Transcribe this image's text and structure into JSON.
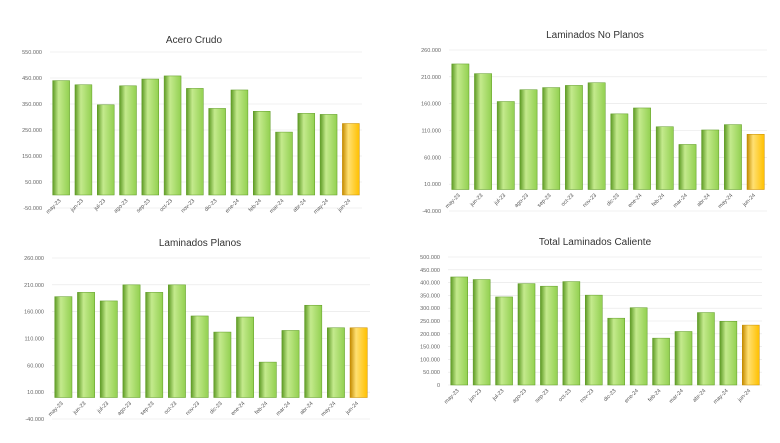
{
  "colors": {
    "bar_green": "#92d050",
    "bar_green_light": "#c4ea8d",
    "bar_green_dark": "#5d9a24",
    "bar_highlight": "#ffc000",
    "bar_highlight_light": "#ffe072",
    "bar_highlight_dark": "#c48a00",
    "grid": "#e4e4e4"
  },
  "chart_data": [
    {
      "type": "bar",
      "title": "Acero Crudo",
      "categories": [
        "may-23",
        "jun-23",
        "jul-23",
        "ago-23",
        "sep-23",
        "oct-23",
        "nov-23",
        "dic-23",
        "ene-24",
        "feb-24",
        "mar-24",
        "abr-24",
        "may-24",
        "jun-24"
      ],
      "values": [
        440000,
        424000,
        347000,
        420000,
        446000,
        458000,
        410000,
        333000,
        404000,
        322000,
        242000,
        314000,
        310000,
        275000
      ],
      "highlight_index": 13,
      "yticks": [
        -50000,
        50000,
        150000,
        250000,
        350000,
        450000,
        550000
      ],
      "ytick_labels": [
        "-50.000",
        "50.000",
        "150.000",
        "250.000",
        "350.000",
        "450.000",
        "550.000"
      ],
      "ylim": [
        -50000,
        550000
      ],
      "xlabel": "",
      "ylabel": "",
      "grid": true
    },
    {
      "type": "bar",
      "title": "Laminados No Planos",
      "categories": [
        "may-23",
        "jun-23",
        "jul-23",
        "ago-23",
        "sep-23",
        "oct-23",
        "nov-23",
        "dic-23",
        "ene-24",
        "feb-24",
        "mar-24",
        "abr-24",
        "may-24",
        "jun-24"
      ],
      "values": [
        234000,
        216000,
        164000,
        186000,
        190000,
        194000,
        199000,
        141000,
        152000,
        117000,
        84000,
        111000,
        121000,
        103000
      ],
      "highlight_index": 13,
      "yticks": [
        -40000,
        10000,
        60000,
        110000,
        160000,
        210000,
        260000
      ],
      "ytick_labels": [
        "-40.000",
        "10.000",
        "60.000",
        "110.000",
        "160.000",
        "210.000",
        "260.000"
      ],
      "ylim": [
        -40000,
        260000
      ],
      "xlabel": "",
      "ylabel": "",
      "grid": true
    },
    {
      "type": "bar",
      "title": "Laminados Planos",
      "categories": [
        "may-23",
        "jun-23",
        "jul-23",
        "ago-23",
        "sep-23",
        "oct-23",
        "nov-23",
        "dic-23",
        "ene-24",
        "feb-24",
        "mar-24",
        "abr-24",
        "may-24",
        "jun-24"
      ],
      "values": [
        188000,
        196000,
        180000,
        210000,
        196000,
        210000,
        152000,
        122000,
        150000,
        66000,
        125000,
        172000,
        130000,
        130000
      ],
      "highlight_index": 13,
      "yticks": [
        -40000,
        10000,
        60000,
        110000,
        160000,
        210000,
        260000
      ],
      "ytick_labels": [
        "-40.000",
        "10.000",
        "60.000",
        "110.000",
        "160.000",
        "210.000",
        "260.000"
      ],
      "ylim": [
        -40000,
        260000
      ],
      "xlabel": "",
      "ylabel": "",
      "grid": true
    },
    {
      "type": "bar",
      "title": "Total Laminados Caliente",
      "categories": [
        "may-23",
        "jun-23",
        "jul-23",
        "ago-23",
        "sep-23",
        "oct-23",
        "nov-23",
        "dic-23",
        "ene-24",
        "feb-24",
        "mar-24",
        "abr-24",
        "may-24",
        "jun-24"
      ],
      "values": [
        422000,
        412000,
        344000,
        396000,
        386000,
        404000,
        351000,
        261000,
        302000,
        183000,
        209000,
        283000,
        249000,
        234000
      ],
      "highlight_index": 13,
      "yticks": [
        0,
        50000,
        100000,
        150000,
        200000,
        250000,
        300000,
        350000,
        400000,
        450000,
        500000
      ],
      "ytick_labels": [
        "0",
        "50.000",
        "100.000",
        "150.000",
        "200.000",
        "250.000",
        "300.000",
        "350.000",
        "400.000",
        "450.000",
        "500.000"
      ],
      "ylim": [
        0,
        500000
      ],
      "xlabel": "",
      "ylabel": "",
      "grid": true
    }
  ]
}
